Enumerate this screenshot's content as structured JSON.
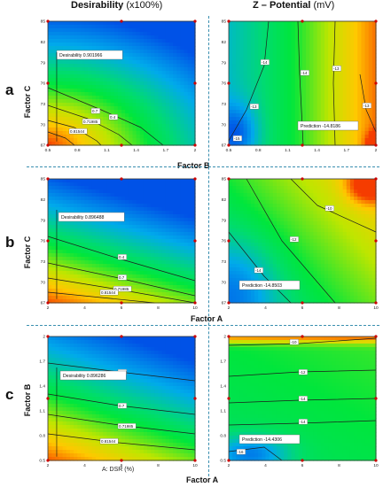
{
  "header": {
    "left_title": "Desirability",
    "left_unit": "(x100%)",
    "right_title": "Z – Potential",
    "right_unit": "(mV)"
  },
  "rows": [
    {
      "label": "a",
      "ylabel": "Factor C",
      "xlabel_center": "Factor B"
    },
    {
      "label": "b",
      "ylabel": "Factor C",
      "xlabel_center": "Factor A"
    },
    {
      "label": "c",
      "ylabel": "Factor B",
      "xlabel_center": "Factor A"
    }
  ],
  "bottom": {
    "dsr_label": "A: DSR (%)"
  },
  "chart_data": [
    {
      "type": "heatmap",
      "panel": "a-left",
      "x_ticks": [
        "0.5",
        "0.8",
        "1.1",
        "1.4",
        "1.7",
        "2"
      ],
      "y_ticks": [
        "67",
        "70",
        "73",
        "76",
        "79",
        "82",
        "85"
      ],
      "annotation": "Desirability  0.901966",
      "contour_labels": [
        "0.4",
        "0.7",
        "0.71985",
        "0.81544"
      ]
    },
    {
      "type": "heatmap",
      "panel": "a-right",
      "x_ticks": [
        "0.5",
        "0.8",
        "1.1",
        "1.4",
        "1.7",
        "2"
      ],
      "y_ticks": [
        "67",
        "70",
        "73",
        "76",
        "79",
        "82",
        "85"
      ],
      "annotation": "Prediction  -14.8186",
      "contour_labels": [
        "-14",
        "-14",
        "-13",
        "-13",
        "-13",
        "-15"
      ]
    },
    {
      "type": "heatmap",
      "panel": "b-left",
      "x_ticks": [
        "2",
        "4",
        "6",
        "8",
        "10"
      ],
      "y_ticks": [
        "67",
        "70",
        "73",
        "76",
        "79",
        "82",
        "85"
      ],
      "annotation": "Desirability  0.896488",
      "contour_labels": [
        "0.4",
        "0.7",
        "0.71985",
        "0.81544"
      ]
    },
    {
      "type": "heatmap",
      "panel": "b-right",
      "x_ticks": [
        "2",
        "4",
        "6",
        "8",
        "10"
      ],
      "y_ticks": [
        "67",
        "70",
        "73",
        "76",
        "79",
        "82",
        "85"
      ],
      "annotation": "Prediction  -14.8503",
      "contour_labels": [
        "-10",
        "-12",
        "-14"
      ]
    },
    {
      "type": "heatmap",
      "panel": "c-left",
      "x_ticks": [
        "2",
        "4",
        "6",
        "8",
        "10"
      ],
      "y_ticks": [
        "0.5",
        "0.8",
        "1.1",
        "1.4",
        "1.7",
        "2"
      ],
      "annotation": "Desirability  0.896286",
      "contour_labels": [
        "0.4",
        "0.7",
        "0.71985",
        "0.81544"
      ]
    },
    {
      "type": "heatmap",
      "panel": "c-right",
      "x_ticks": [
        "2",
        "4",
        "6",
        "8",
        "10"
      ],
      "y_ticks": [
        "0.5",
        "0.8",
        "1.1",
        "1.4",
        "1.7",
        "2"
      ],
      "annotation": "Prediction  -14.4306",
      "contour_labels": [
        "-10",
        "-12",
        "-14",
        "-14",
        "-16"
      ]
    }
  ]
}
